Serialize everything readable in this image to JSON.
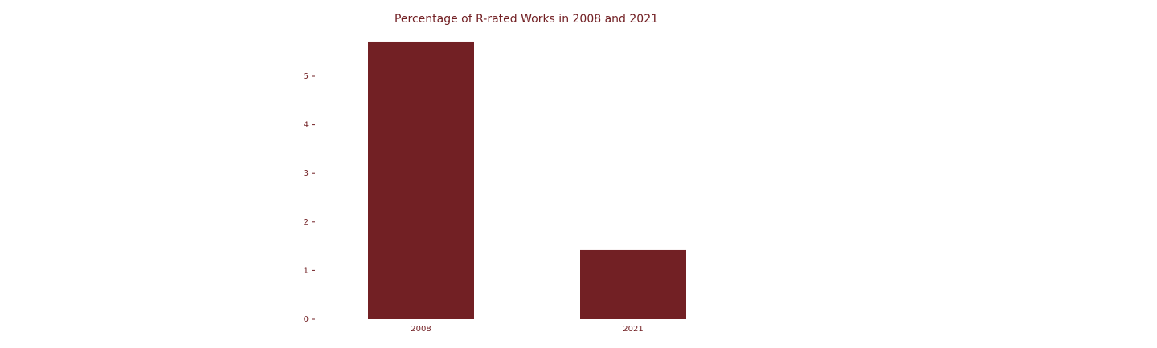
{
  "chart_data": {
    "type": "bar",
    "title": "Percentage of R-rated Works in 2008 and 2021",
    "categories": [
      "2008",
      "2021"
    ],
    "values": [
      5.71,
      1.42
    ],
    "color": "#722024",
    "ylim": [
      0,
      6
    ],
    "yticks": [
      0,
      1,
      2,
      3,
      4,
      5
    ],
    "grid": false
  }
}
